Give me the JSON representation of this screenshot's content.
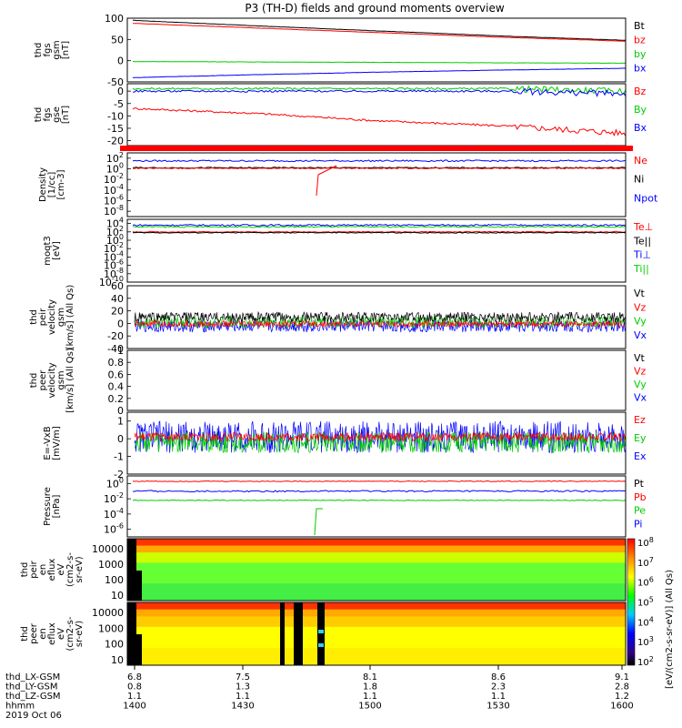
{
  "title": "P3 (TH-D) fields and ground moments overview",
  "colors": {
    "black": "#000000",
    "red": "#ff0000",
    "green": "#00cc00",
    "blue": "#0000ff",
    "orange": "#ff9900"
  },
  "panels": [
    {
      "id": "fgs_gsm",
      "ylabel": [
        "thd",
        "fgs",
        "gsm",
        "[nT]"
      ],
      "ylim": [
        -50,
        100
      ],
      "ticks": [
        -50,
        0,
        50,
        100
      ],
      "legend": [
        {
          "text": "Bt",
          "color": "black"
        },
        {
          "text": "bz",
          "color": "red"
        },
        {
          "text": "by",
          "color": "green"
        },
        {
          "text": "bx",
          "color": "blue"
        }
      ]
    },
    {
      "id": "fgs_gse",
      "ylabel": [
        "thd",
        "fgs",
        "gse",
        "[nT]"
      ],
      "ylim": [
        -22,
        3
      ],
      "ticks": [
        -20,
        -15,
        -10,
        -5,
        0
      ],
      "legend": [
        {
          "text": "Bz",
          "color": "red"
        },
        {
          "text": "By",
          "color": "green"
        },
        {
          "text": "Bx",
          "color": "blue"
        }
      ]
    },
    {
      "id": "density",
      "ylabel": [
        "Density",
        "[1/cc]",
        "[cm-3]"
      ],
      "ylim": [
        -9,
        3
      ],
      "log": true,
      "ticks": [
        "10^2",
        "10^0",
        "10^-2",
        "10^-4",
        "10^-6",
        "10^-8"
      ],
      "legend": [
        {
          "text": "Ne",
          "color": "red"
        },
        {
          "text": "Ni",
          "color": "black"
        },
        {
          "text": "Npot",
          "color": "blue"
        }
      ]
    },
    {
      "id": "temp",
      "ylabel": [
        "moqt3",
        "[eV]"
      ],
      "ylim": [
        -10,
        5
      ],
      "log": true,
      "ticks": [
        "10^4",
        "10^2",
        "10^0",
        "10^-2",
        "10^-4",
        "10^-6",
        "10^-8",
        "10^-10"
      ],
      "legend": [
        {
          "text": "Te⊥",
          "color": "red"
        },
        {
          "text": "Te||",
          "color": "black"
        },
        {
          "text": "Ti⊥",
          "color": "blue"
        },
        {
          "text": "Ti||",
          "color": "green"
        }
      ]
    },
    {
      "id": "peir_vel",
      "ylabel": [
        "thd",
        "peir",
        "velocity",
        "gsm",
        "[km/s] (All Qs)"
      ],
      "ylim": [
        -40,
        60
      ],
      "ticks": [
        -40,
        -20,
        0,
        20,
        40,
        60
      ],
      "legend": [
        {
          "text": "Vt",
          "color": "black"
        },
        {
          "text": "Vz",
          "color": "red"
        },
        {
          "text": "Vy",
          "color": "green"
        },
        {
          "text": "Vx",
          "color": "blue"
        }
      ]
    },
    {
      "id": "peer_vel",
      "ylabel": [
        "thd",
        "peer",
        "velocity",
        "gsm",
        "[km/s] (All Qs)"
      ],
      "ylim": [
        0,
        1
      ],
      "ticks": [
        0.0,
        0.2,
        0.4,
        0.6,
        0.8,
        1.0
      ],
      "legend": [
        {
          "text": "Vt",
          "color": "black"
        },
        {
          "text": "Vz",
          "color": "red"
        },
        {
          "text": "Vy",
          "color": "green"
        },
        {
          "text": "Vx",
          "color": "blue"
        }
      ]
    },
    {
      "id": "efield",
      "ylabel": [
        "E=-VxB",
        "[mV/m]"
      ],
      "ylim": [
        -2,
        1.5
      ],
      "ticks": [
        -2,
        -1,
        0,
        1
      ],
      "legend": [
        {
          "text": "Ez",
          "color": "red"
        },
        {
          "text": "Ey",
          "color": "green"
        },
        {
          "text": "Ex",
          "color": "blue"
        }
      ]
    },
    {
      "id": "pressure",
      "ylabel": [
        "Pressure",
        "[nPa]"
      ],
      "ylim": [
        -7,
        1
      ],
      "log": true,
      "ticks": [
        "10^0",
        "10^-2",
        "10^-4",
        "10^-6"
      ],
      "legend": [
        {
          "text": "Pt",
          "color": "black"
        },
        {
          "text": "Pb",
          "color": "red"
        },
        {
          "text": "Pe",
          "color": "green"
        },
        {
          "text": "Pi",
          "color": "blue"
        }
      ]
    },
    {
      "id": "peir_spec",
      "ylabel": [
        "thd",
        "peir",
        "en",
        "eflux",
        "eV",
        "(cm2-s-",
        "sr-eV)"
      ],
      "ticks": [
        10000,
        1000,
        100,
        10
      ]
    },
    {
      "id": "peer_spec",
      "ylabel": [
        "thd",
        "peer",
        "en",
        "eflux",
        "eV",
        "(cm2-s-",
        "sr-eV)"
      ],
      "ticks": [
        10000,
        1000,
        100,
        10
      ]
    }
  ],
  "colorbar": {
    "label": "[eV/(cm2-s-sr-eV)] (All Qs)",
    "ticks": [
      "10^8",
      "10^7",
      "10^6",
      "10^5",
      "10^4",
      "10^3",
      "10^2"
    ]
  },
  "xaxis": {
    "rows": [
      {
        "label": "thd_LX-GSM",
        "values": [
          "6.8",
          "7.5",
          "8.1",
          "8.6",
          "9.1"
        ]
      },
      {
        "label": "thd_LY-GSM",
        "values": [
          "0.8",
          "1.3",
          "1.8",
          "2.3",
          "2.8"
        ]
      },
      {
        "label": "thd_LZ-GSM",
        "values": [
          "1.1",
          "1.1",
          "1.1",
          "1.1",
          "1.2"
        ]
      },
      {
        "label": "hhmm",
        "values": [
          "1400",
          "1430",
          "1500",
          "1530",
          "1600"
        ]
      }
    ],
    "date": "2019 Oct 06"
  },
  "chart_data": {
    "type": "line",
    "title": "P3 (TH-D) fields and ground moments overview",
    "x_range": [
      "1400",
      "1600"
    ],
    "series": [
      {
        "name": "Bt",
        "panel": "fgs_gsm",
        "x": [
          "1400",
          "1430",
          "1500",
          "1530",
          "1600"
        ],
        "values": [
          95,
          82,
          70,
          58,
          48
        ]
      },
      {
        "name": "bz",
        "panel": "fgs_gsm",
        "x": [
          "1400",
          "1430",
          "1500",
          "1530",
          "1600"
        ],
        "values": [
          88,
          77,
          66,
          55,
          46
        ]
      },
      {
        "name": "by",
        "panel": "fgs_gsm",
        "x": [
          "1400",
          "1430",
          "1500",
          "1530",
          "1600"
        ],
        "values": [
          -2,
          -3,
          -4,
          -5,
          -6
        ]
      },
      {
        "name": "bx",
        "panel": "fgs_gsm",
        "x": [
          "1400",
          "1430",
          "1500",
          "1530",
          "1600"
        ],
        "values": [
          -40,
          -33,
          -27,
          -22,
          -18
        ]
      },
      {
        "name": "Bz",
        "panel": "fgs_gse",
        "x": [
          "1400",
          "1430",
          "1500",
          "1530",
          "1600"
        ],
        "values": [
          -7,
          -9,
          -12,
          -14,
          -17
        ]
      },
      {
        "name": "By",
        "panel": "fgs_gse",
        "x": [
          "1400",
          "1430",
          "1500",
          "1530",
          "1600"
        ],
        "values": [
          1,
          1,
          1,
          1,
          0
        ]
      },
      {
        "name": "Bx",
        "panel": "fgs_gse",
        "x": [
          "1400",
          "1430",
          "1500",
          "1530",
          "1600"
        ],
        "values": [
          0,
          0,
          0,
          0,
          -1
        ]
      }
    ]
  }
}
